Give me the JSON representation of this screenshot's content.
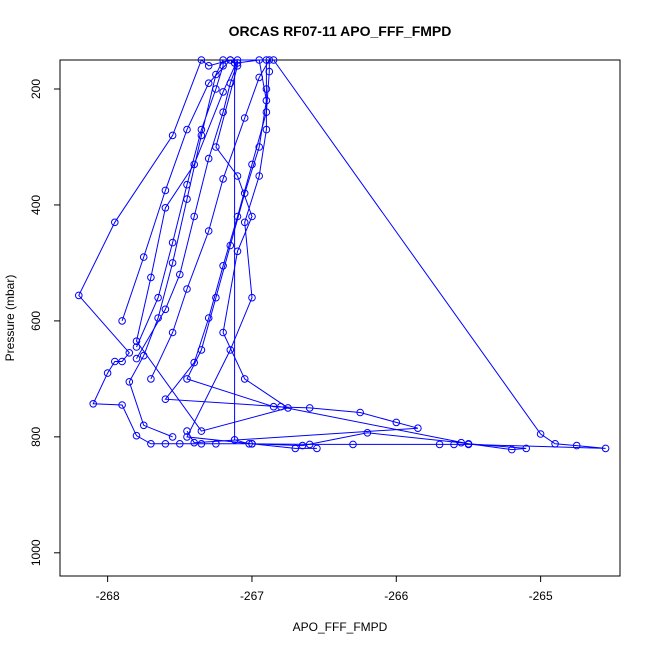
{
  "chart_data": {
    "type": "line",
    "title": "ORCAS RF07-11 APO_FFF_FMPD",
    "xlabel": "APO_FFF_FMPD",
    "ylabel": "Pressure (mbar)",
    "xlim": [
      -268.33,
      -264.45
    ],
    "ylim": [
      1040,
      150
    ],
    "y_reversed": true,
    "x_ticks": [
      -268,
      -267,
      -266,
      -265
    ],
    "y_ticks": [
      200,
      400,
      600,
      800,
      1000
    ],
    "grid": false,
    "legend": "none",
    "marker": "open-circle",
    "color": "#0000ff",
    "series": [
      {
        "values": [
          [
            -266.85,
            150
          ],
          [
            -265.0,
            795
          ],
          [
            -264.9,
            812
          ],
          [
            -264.75,
            815
          ],
          [
            -264.55,
            820
          ],
          [
            -265.5,
            813
          ],
          [
            -265.6,
            813
          ],
          [
            -265.7,
            813
          ],
          [
            -266.3,
            813
          ],
          [
            -266.6,
            813
          ],
          [
            -267.0,
            812
          ],
          [
            -267.25,
            812
          ],
          [
            -267.35,
            812
          ],
          [
            -267.5,
            812
          ],
          [
            -267.6,
            812
          ],
          [
            -267.7,
            812
          ],
          [
            -267.8,
            798
          ],
          [
            -267.9,
            745
          ],
          [
            -268.1,
            743
          ],
          [
            -268.0,
            690
          ],
          [
            -267.95,
            670
          ],
          [
            -267.9,
            670
          ],
          [
            -267.85,
            655
          ],
          [
            -268.2,
            556
          ],
          [
            -267.95,
            430
          ],
          [
            -267.55,
            280
          ],
          [
            -267.35,
            150
          ],
          [
            -267.3,
            160
          ],
          [
            -267.15,
            150
          ],
          [
            -267.1,
            160
          ],
          [
            -267.25,
            300
          ],
          [
            -267.1,
            350
          ],
          [
            -267.0,
            420
          ],
          [
            -267.1,
            480
          ],
          [
            -267.2,
            620
          ],
          [
            -267.05,
            700
          ],
          [
            -266.75,
            750
          ],
          [
            -267.35,
            790
          ],
          [
            -267.8,
            635
          ],
          [
            -267.7,
            525
          ],
          [
            -267.6,
            405
          ],
          [
            -267.4,
            330
          ],
          [
            -267.2,
            205
          ],
          [
            -267.1,
            150
          ],
          [
            -266.9,
            150
          ],
          [
            -266.9,
            200
          ],
          [
            -266.9,
            270
          ],
          [
            -266.95,
            350
          ],
          [
            -267.05,
            430
          ],
          [
            -267.0,
            560
          ],
          [
            -267.15,
            650
          ],
          [
            -267.45,
            800
          ],
          [
            -266.7,
            820
          ],
          [
            -266.55,
            820
          ]
        ]
      },
      {
        "values": [
          [
            -267.8,
            665
          ],
          [
            -267.6,
            580
          ],
          [
            -267.5,
            520
          ],
          [
            -267.4,
            420
          ],
          [
            -267.3,
            320
          ],
          [
            -267.2,
            240
          ],
          [
            -267.15,
            190
          ],
          [
            -267.1,
            155
          ],
          [
            -266.95,
            150
          ],
          [
            -266.9,
            220
          ],
          [
            -266.95,
            300
          ],
          [
            -267.05,
            380
          ],
          [
            -267.15,
            470
          ],
          [
            -267.25,
            560
          ],
          [
            -267.35,
            650
          ],
          [
            -267.45,
            700
          ],
          [
            -266.85,
            748
          ],
          [
            -266.6,
            750
          ],
          [
            -266.25,
            758
          ],
          [
            -266.0,
            775
          ],
          [
            -265.85,
            785
          ],
          [
            -267.4,
            810
          ],
          [
            -267.45,
            790
          ]
        ]
      },
      {
        "values": [
          [
            -267.7,
            700
          ],
          [
            -267.55,
            620
          ],
          [
            -267.45,
            545
          ],
          [
            -267.3,
            445
          ],
          [
            -267.2,
            355
          ],
          [
            -267.05,
            250
          ],
          [
            -266.95,
            180
          ],
          [
            -266.88,
            150
          ],
          [
            -266.88,
            170
          ],
          [
            -266.9,
            240
          ],
          [
            -267.0,
            330
          ],
          [
            -267.1,
            420
          ],
          [
            -267.2,
            505
          ],
          [
            -267.3,
            595
          ],
          [
            -267.4,
            672
          ],
          [
            -267.6,
            735
          ],
          [
            -266.8,
            748
          ],
          [
            -265.5,
            812
          ],
          [
            -265.1,
            820
          ],
          [
            -265.2,
            822
          ],
          [
            -265.55,
            810
          ],
          [
            -266.2,
            793
          ],
          [
            -266.65,
            815
          ],
          [
            -267.0,
            812
          ]
        ]
      },
      {
        "values": [
          [
            -267.8,
            645
          ],
          [
            -267.65,
            560
          ],
          [
            -267.55,
            465
          ],
          [
            -267.45,
            365
          ],
          [
            -267.35,
            270
          ],
          [
            -267.25,
            200
          ],
          [
            -267.2,
            160
          ],
          [
            -267.2,
            150
          ],
          [
            -267.25,
            175
          ],
          [
            -267.35,
            280
          ],
          [
            -267.45,
            390
          ],
          [
            -267.55,
            500
          ],
          [
            -267.65,
            595
          ],
          [
            -267.75,
            660
          ],
          [
            -267.85,
            705
          ],
          [
            -267.75,
            780
          ],
          [
            -267.55,
            800
          ]
        ]
      },
      {
        "values": [
          [
            -267.9,
            600
          ],
          [
            -267.75,
            490
          ],
          [
            -267.6,
            375
          ],
          [
            -267.45,
            270
          ],
          [
            -267.3,
            190
          ],
          [
            -267.15,
            150
          ],
          [
            -267.12,
            155
          ],
          [
            -267.12,
            805
          ],
          [
            -267.02,
            812
          ]
        ]
      }
    ]
  }
}
